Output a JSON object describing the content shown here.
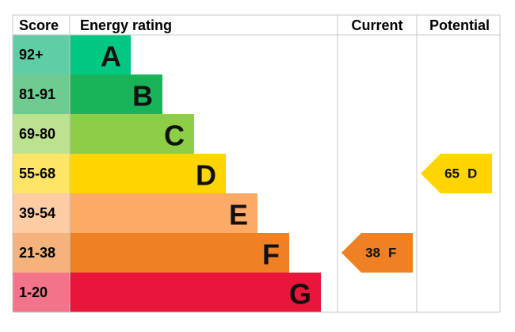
{
  "header": {
    "score": "Score",
    "rating": "Energy rating",
    "current": "Current",
    "potential": "Potential"
  },
  "bands": [
    {
      "score": "92+",
      "letter": "A",
      "color": "#00c781",
      "score_color": "#5fcea6"
    },
    {
      "score": "81-91",
      "letter": "B",
      "color": "#19b459",
      "score_color": "#6fcb8f"
    },
    {
      "score": "69-80",
      "letter": "C",
      "color": "#8dce46",
      "score_color": "#bbe28f"
    },
    {
      "score": "55-68",
      "letter": "D",
      "color": "#ffd500",
      "score_color": "#ffe566"
    },
    {
      "score": "39-54",
      "letter": "E",
      "color": "#fcaa65",
      "score_color": "#fdcca3"
    },
    {
      "score": "21-38",
      "letter": "F",
      "color": "#ef8023",
      "score_color": "#f5b37b"
    },
    {
      "score": "1-20",
      "letter": "G",
      "color": "#e9153b",
      "score_color": "#f2738a"
    }
  ],
  "current": {
    "value": 38,
    "rating": "F"
  },
  "potential": {
    "value": 65,
    "rating": "D"
  }
}
